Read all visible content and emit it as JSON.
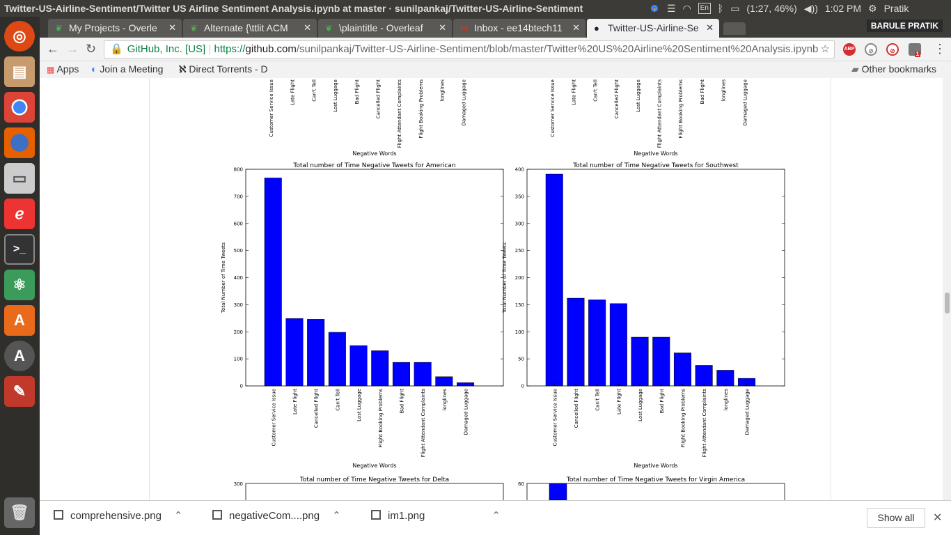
{
  "system": {
    "window_title": "Twitter-US-Airline-Sentiment/Twitter US Airline Sentiment Analysis.ipynb at master · sunilpankaj/Twitter-US-Airline-Sentiment",
    "keyboard_layout": "En",
    "battery": "(1:27, 46%)",
    "clock": "1:02 PM",
    "user": "Pratik"
  },
  "browser": {
    "profile_name": "BARULE PRATIK",
    "tabs": [
      {
        "label": "My Projects - Overle",
        "icon": "overleaf-icon"
      },
      {
        "label": "Alternate {\\ttlit ACM",
        "icon": "overleaf-icon"
      },
      {
        "label": "\\plaintitle - Overleaf",
        "icon": "overleaf-icon"
      },
      {
        "label": "Inbox - ee14btech11",
        "icon": "gmail-icon"
      },
      {
        "label": "Twitter-US-Airline-Se",
        "icon": "github-icon"
      }
    ],
    "security_label": "GitHub, Inc. [US]",
    "url_prefix": "https://",
    "url_host": "github.com",
    "url_path": "/sunilpankaj/Twitter-US-Airline-Sentiment/blob/master/Twitter%20US%20Airline%20Sentiment%20Analysis.ipynb",
    "extension_abp": "ABP",
    "extension_badge": "1",
    "bookmarks": [
      "Apps",
      "Join a Meeting",
      "Direct Torrents - D"
    ],
    "other_bookmarks": "Other bookmarks"
  },
  "page": {
    "top_left_labels": [
      "Customer Service Issue",
      "Late Flight",
      "Can't Tell",
      "Lost Luggage",
      "Bad Flight",
      "Cancelled Flight",
      "Flight Attendant Complaints",
      "Flight Booking Problems",
      "longlines",
      "Damaged Luggage"
    ],
    "top_right_labels": [
      "Customer Service Issue",
      "Late Flight",
      "Can't Tell",
      "Cancelled Flight",
      "Lost Luggage",
      "Flight Attendant Complaints",
      "Flight Booking Problems",
      "Bad Flight",
      "longlines",
      "Damaged Luggage"
    ],
    "top_xlabel": "Negative Words",
    "bottom_left_title": "Total number of Time Negative Tweets for Delta",
    "bottom_left_ymax": "300",
    "bottom_right_title": "Total number of Time Negative Tweets for Virgin America",
    "bottom_right_ymax": "60"
  },
  "chart_data": [
    {
      "type": "bar",
      "title": "Total number of Time Negative Tweets for American",
      "xlabel": "Negative Words",
      "ylabel": "Total Number of Time Tweets",
      "ylim": [
        0,
        800
      ],
      "yticks": [
        0,
        100,
        200,
        300,
        400,
        500,
        600,
        700,
        800
      ],
      "color": "#0000ff",
      "categories": [
        "Customer Service Issue",
        "Late Flight",
        "Cancelled Flight",
        "Can't Tell",
        "Lost Luggage",
        "Flight Booking Problems",
        "Bad Flight",
        "Flight Attendant Complaints",
        "longlines",
        "Damaged Luggage"
      ],
      "values": [
        768,
        249,
        246,
        198,
        149,
        130,
        87,
        87,
        34,
        12
      ]
    },
    {
      "type": "bar",
      "title": "Total number of Time Negative Tweets for Southwest",
      "xlabel": "Negative Words",
      "ylabel": "Total Number of Time Tweets",
      "ylim": [
        0,
        400
      ],
      "yticks": [
        0,
        50,
        100,
        150,
        200,
        250,
        300,
        350,
        400
      ],
      "color": "#0000ff",
      "categories": [
        "Customer Service Issue",
        "Cancelled Flight",
        "Can't Tell",
        "Late Flight",
        "Lost Luggage",
        "Bad Flight",
        "Flight Booking Problems",
        "Flight Attendant Complaints",
        "longlines",
        "Damaged Luggage"
      ],
      "values": [
        391,
        162,
        159,
        152,
        90,
        90,
        61,
        38,
        29,
        14
      ]
    }
  ],
  "downloads": {
    "items": [
      "comprehensive.png",
      "negativeCom....png",
      "im1.png"
    ],
    "show_all": "Show all"
  }
}
